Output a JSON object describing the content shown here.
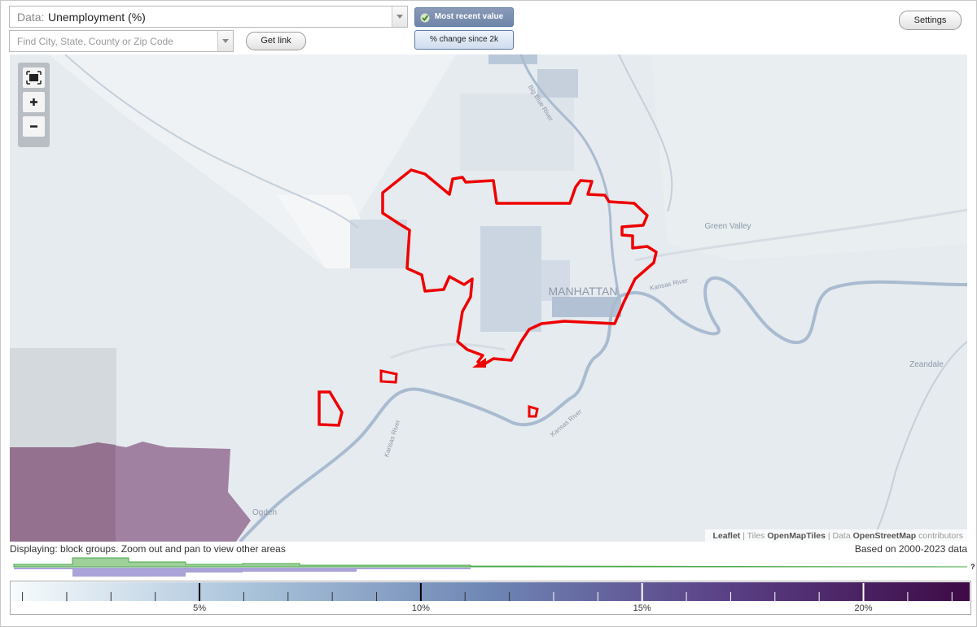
{
  "toolbar": {
    "data_label": "Data:",
    "data_value": "Unemployment (%)",
    "search_placeholder": "Find City, State, County or Zip Code",
    "get_link": "Get link",
    "modes": [
      "Most recent value",
      "% change since 2k"
    ],
    "settings": "Settings"
  },
  "map": {
    "labels": [
      "MANHATTAN",
      "Green Valley",
      "Zeandale",
      "Ogden",
      "Big Blue River",
      "Kansas River",
      "Kansas River",
      "Kansas River"
    ],
    "attribution": [
      "Leaflet",
      " | Tiles ",
      "OpenMapTiles",
      " | Data ",
      "OpenStreetMap",
      " contributors"
    ]
  },
  "footer": {
    "displaying": "Displaying: block groups. Zoom out and pan to view other areas",
    "based_on": "Based on 2000-2023 data",
    "unknown": "?"
  },
  "legend": {
    "range": [
      0.75,
      22.4
    ],
    "colors": [
      "#f7fbfd",
      "#a9c3da",
      "#6e86b4",
      "#5a3f85",
      "#3d0a45"
    ],
    "ticks": [
      {
        "value": 5,
        "label": "5%"
      },
      {
        "value": 10,
        "label": "10%"
      },
      {
        "value": 15,
        "label": "15%"
      },
      {
        "value": 20,
        "label": "20%"
      }
    ],
    "minor_ticks": [
      1,
      2,
      3,
      4,
      6,
      7,
      8,
      9,
      11,
      12,
      13,
      14,
      16,
      17,
      18,
      19,
      21,
      22
    ]
  }
}
